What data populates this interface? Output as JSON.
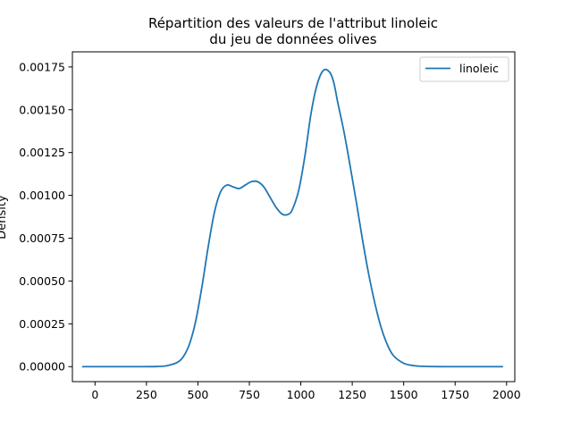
{
  "chart_data": {
    "type": "line",
    "title_lines": [
      "Répartition des valeurs de l'attribut linoleic",
      "du jeu de données olives"
    ],
    "xlabel": "",
    "ylabel": "Density",
    "xlim": [
      -110,
      2040
    ],
    "ylim": [
      -8.75e-05,
      0.001838
    ],
    "x_ticks": [
      0,
      250,
      500,
      750,
      1000,
      1250,
      1500,
      1750,
      2000
    ],
    "x_tick_labels": [
      "0",
      "250",
      "500",
      "750",
      "1000",
      "1250",
      "1500",
      "1750",
      "2000"
    ],
    "y_ticks": [
      0,
      0.00025,
      0.0005,
      0.00075,
      0.001,
      0.00125,
      0.0015,
      0.00175
    ],
    "y_tick_labels": [
      "0.00000",
      "0.00025",
      "0.00050",
      "0.00075",
      "0.00100",
      "0.00125",
      "0.00150",
      "0.00175"
    ],
    "grid": false,
    "legend_position": "upper right",
    "series": [
      {
        "name": "linoleic",
        "color": "#1f77b4",
        "x": [
          -60,
          0,
          100,
          200,
          300,
          350,
          400,
          430,
          460,
          490,
          520,
          550,
          580,
          610,
          640,
          670,
          700,
          730,
          760,
          790,
          820,
          850,
          880,
          910,
          940,
          960,
          990,
          1020,
          1050,
          1080,
          1110,
          1140,
          1160,
          1180,
          1210,
          1240,
          1270,
          1300,
          1330,
          1360,
          1390,
          1420,
          1450,
          1500,
          1550,
          1600,
          1700,
          1800,
          1900,
          1980
        ],
        "y": [
          0,
          0,
          0,
          0,
          1e-06,
          6e-06,
          2.5e-05,
          6e-05,
          0.000135,
          0.00027,
          0.00047,
          0.0007,
          0.0009,
          0.00102,
          0.00106,
          0.00105,
          0.00104,
          0.00106,
          0.00108,
          0.00108,
          0.00105,
          0.00099,
          0.00093,
          0.00089,
          0.00089,
          0.00092,
          0.00103,
          0.00123,
          0.00148,
          0.00165,
          0.00173,
          0.00172,
          0.00166,
          0.00154,
          0.00137,
          0.00117,
          0.00096,
          0.00074,
          0.00054,
          0.00037,
          0.00023,
          0.00013,
          6.5e-05,
          2e-05,
          6e-06,
          2e-06,
          0,
          0,
          0,
          0
        ]
      }
    ]
  }
}
